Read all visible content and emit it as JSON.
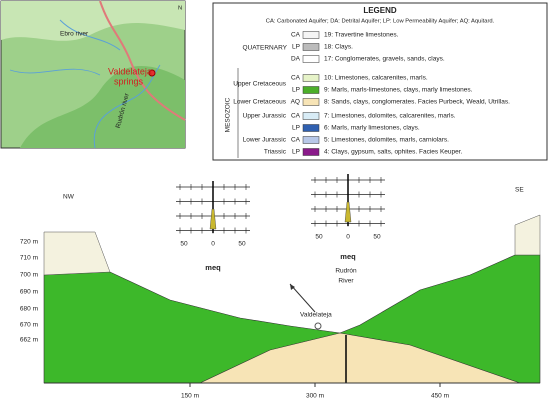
{
  "map": {
    "north": "N",
    "river_ebro": "Ebro river",
    "springs": [
      "Valdelateja",
      "springs"
    ],
    "river_rudron": "Rudrón river"
  },
  "legend": {
    "title": "LEGEND",
    "subtitle": "CA: Carbonated Aquifer; DA: Detrital Aquifer; LP: Low Permeability Aquifer; AQ: Aquitard.",
    "era_quaternary": "QUATERNARY",
    "era_mesozoic": "MESOZOIC",
    "periods": [
      "Upper Cretaceous",
      "Lower Cretaceous",
      "Upper Jurassic",
      "Lower Jurassic",
      "Triassic"
    ],
    "rows": [
      {
        "code": "CA",
        "text": "19: Travertine limestones."
      },
      {
        "code": "LP",
        "text": "18: Clays."
      },
      {
        "code": "DA",
        "text": "17: Conglomerates, gravels, sands, clays."
      },
      {
        "code": "CA",
        "text": "10: Limestones, calcarenites, marls."
      },
      {
        "code": "LP",
        "text": "9: Marls, marls-limestones, clays, marly limestones."
      },
      {
        "code": "AQ",
        "text": "8: Sands, clays, conglomerates. Facies Purbeck, Weald, Utrillas."
      },
      {
        "code": "CA",
        "text": "7: Limestones, dolomites, calcarenites, marls."
      },
      {
        "code": "LP",
        "text": "6: Marls, marly limestones, clays."
      },
      {
        "code": "CA",
        "text": "5: Limestones, dolomites, marls, carniolars."
      },
      {
        "code": "LP",
        "text": "4: Clays, gypsum, salts, ophites. Facies Keuper."
      }
    ]
  },
  "section": {
    "nw": "NW",
    "se": "SE",
    "elevations": [
      "720 m",
      "710 m",
      "700 m",
      "690 m",
      "680 m",
      "670 m",
      "662 m"
    ],
    "distances": [
      "150 m",
      "300 m",
      "450 m"
    ],
    "valdelateja": "Valdelateja",
    "river": [
      "Rudrón",
      "River"
    ],
    "stiff_left": {
      "ticks": [
        "50",
        "0",
        "50"
      ],
      "unit": "meq"
    },
    "stiff_right": {
      "ticks": [
        "50",
        "0",
        "50"
      ],
      "unit": "meq"
    }
  }
}
